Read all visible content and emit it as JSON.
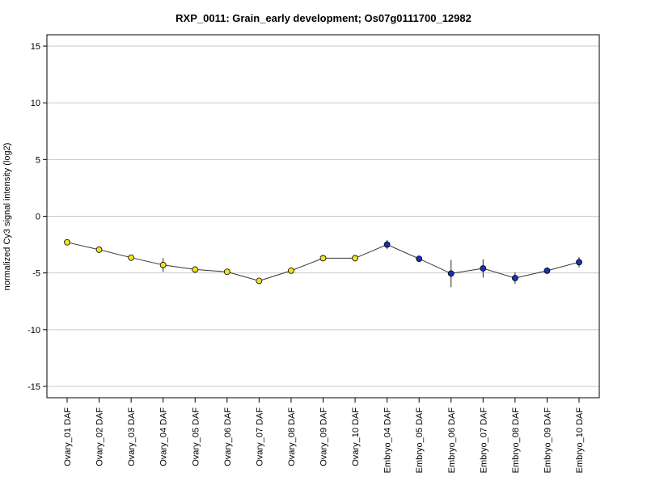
{
  "chart_data": {
    "type": "line",
    "title": "RXP_0011: Grain_early development; Os07g0111700_12982",
    "ylabel": "normalized Cy3 signal intensity (log2)",
    "xlabel": "",
    "ylim": [
      -16,
      16
    ],
    "yticks": [
      -15,
      -10,
      -5,
      0,
      5,
      10,
      15
    ],
    "grid": true,
    "categories": [
      "Ovary_01 DAF",
      "Ovary_02 DAF",
      "Ovary_03 DAF",
      "Ovary_04 DAF",
      "Ovary_05 DAF",
      "Ovary_06 DAF",
      "Ovary_07 DAF",
      "Ovary_08 DAF",
      "Ovary_09 DAF",
      "Ovary_10 DAF",
      "Embryo_04 DAF",
      "Embryo_05 DAF",
      "Embryo_06 DAF",
      "Embryo_07 DAF",
      "Embryo_08 DAF",
      "Embryo_09 DAF",
      "Embryo_10 DAF"
    ],
    "values": [
      -2.3,
      -2.95,
      -3.65,
      -4.3,
      -4.7,
      -4.9,
      -5.7,
      -4.8,
      -3.7,
      -3.7,
      -2.5,
      -3.75,
      -5.05,
      -4.6,
      -5.45,
      -4.8,
      -4.05
    ],
    "error": [
      0.2,
      0.3,
      0.2,
      0.6,
      0.2,
      0.15,
      0.2,
      0.2,
      0.2,
      0.2,
      0.4,
      0.2,
      1.2,
      0.8,
      0.5,
      0.3,
      0.45
    ],
    "point_colors": [
      "#f2e21a",
      "#f2e21a",
      "#f2e21a",
      "#f2e21a",
      "#f2e21a",
      "#f2e21a",
      "#f2e21a",
      "#f2e21a",
      "#f2e21a",
      "#f2e21a",
      "#1a2fbf",
      "#1a2fbf",
      "#1a2fbf",
      "#1a2fbf",
      "#1a2fbf",
      "#1a2fbf",
      "#1a2fbf"
    ]
  }
}
